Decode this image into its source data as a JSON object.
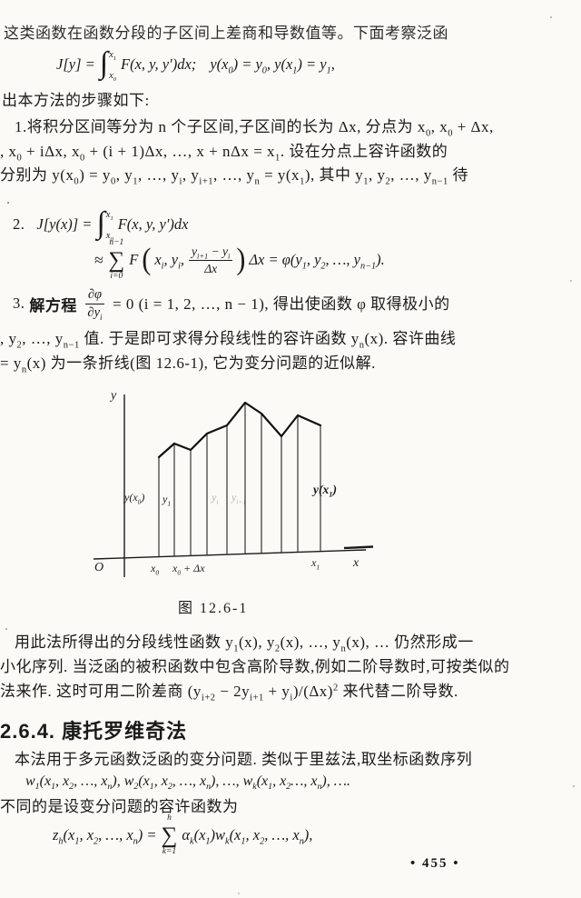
{
  "page": {
    "number": "• 455 •"
  },
  "intro": {
    "line1": "这类函数在函数分段的子区间上差商和导数值等。下面考察泛函",
    "steps_lead": "出本方法的步骤如下:"
  },
  "formula_J": {
    "lhs": "J[y] =",
    "int_sign": "∫",
    "int_upper": "x_1",
    "int_lower": "x_0",
    "integrand": "F(x, y, y′)dx;",
    "bc": "y(x_0) = y_0,  y(x_1) = y_1,"
  },
  "step1": {
    "line1": "1.将积分区间等分为 n 个子区间,子区间的长为 Δx, 分点为 x_0, x_0 + Δx,",
    "line2": ", x_0 + iΔx, x_0 + (i + 1)Δx, …, x + nΔx = x_1.  设在分点上容许函数的",
    "line3": "分别为 y(x_0) = y_0, y_1, …, y_i, y_{i+1}, …, y_n = y(x_1), 其中 y_1, y_2, …, y_{n−1} 待"
  },
  "step2": {
    "label": "2.",
    "lhs": "J[y(x)] =",
    "int_sign": "∫",
    "int_upper": "x_1",
    "int_lower": "x_0",
    "integrand": "F(x, y, y′)dx",
    "row2": {
      "approx": "≈",
      "sum_upper": "n−1",
      "sum_sign": "∑",
      "sum_lower": "i=0",
      "func": "F",
      "paren_open": "(",
      "args": "x_i, y_i,",
      "frac_num": "y_{i+1} − y_i",
      "frac_den": "Δx",
      "paren_close": ")",
      "tail": "Δx = φ(y_1, y_2, …, y_{n−1})."
    }
  },
  "step3": {
    "label": "3.",
    "pre": "解方程",
    "frac_num": "∂φ",
    "frac_den": "∂y_i",
    "post": "= 0 (i = 1, 2, …, n − 1), 得出使函数 φ 取得极小的",
    "line2": ", y_2, …, y_{n−1} 值.  于是即可求得分段线性的容许函数 y_n(x).  容许曲线",
    "line3": "= y_n(x) 为一条折线(图 12.6-1), 它为变分问题的近似解."
  },
  "figure": {
    "caption": "图  12.6-1",
    "y_axis_label": "y",
    "x_axis_label": "x",
    "origin_label": "O",
    "label_yx0": "y(x_0)",
    "label_y1": "y_1",
    "label_yi": "y_i",
    "label_yi1": "y_{i+1}",
    "label_yx1": "y(x_1)",
    "label_x0": "x_0",
    "label_x0dx": "x_0 + Δx",
    "label_x1": "x_1",
    "curve_points": [
      [
        80,
        75
      ],
      [
        97,
        60
      ],
      [
        115,
        67
      ],
      [
        133,
        49
      ],
      [
        155,
        40
      ],
      [
        175,
        15
      ],
      [
        193,
        27
      ],
      [
        215,
        52
      ],
      [
        233,
        29
      ],
      [
        258,
        40
      ]
    ]
  },
  "para_after": {
    "line1": "用此法所得出的分段线性函数  y_1(x), y_2(x), …, y_n(x), …  仍然形成一",
    "line2": "小化序列.  当泛函的被积函数中包含高阶导数,例如二阶导数时,可按类似的",
    "line3": "法来作.  这时可用二阶差商 (y_{i+2} − 2y_{i+1} + y_i)/(Δx)^2 来代替二阶导数."
  },
  "section": {
    "heading": "2.6.4. 康托罗维奇法",
    "para1": "本法用于多元函数泛函的变分问题.  类似于里兹法,取坐标函数序列",
    "sequence": "w_1(x_1, x_2, …, x_n), w_2(x_1, x_2, …, x_n), …, w_k(x_1, x_2…, x_n), ….",
    "para2": "不同的是设变分问题的容许函数为"
  },
  "formula_z": {
    "lhs": "z_h(x_1, x_2, …, x_n) =",
    "sum_upper": "h",
    "sum_sign": "∑",
    "sum_lower": "k=1",
    "rhs": "α_k(x_1)w_k(x_1, x_2, …, x_n),"
  }
}
